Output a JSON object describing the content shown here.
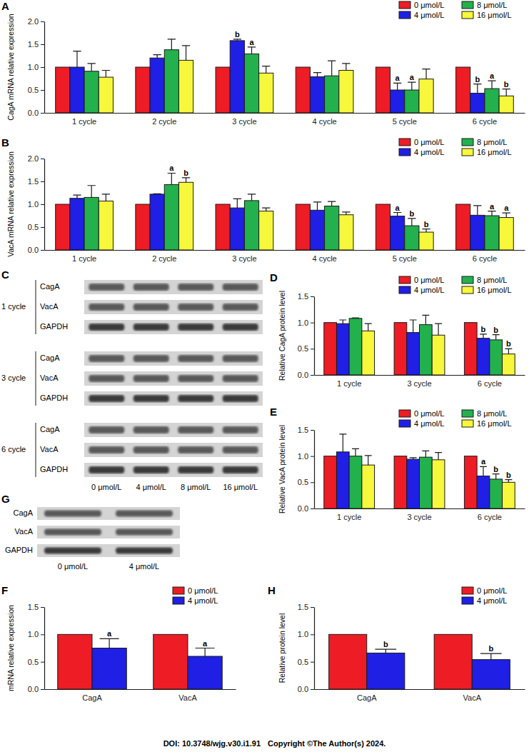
{
  "chart_data": [
    {
      "type": "bar",
      "panel": "A",
      "y_label": "CagA mRNA relative expression",
      "categories": [
        "1 cycle",
        "2 cycle",
        "3 cycle",
        "4 cycle",
        "5 cycle",
        "6 cycle"
      ],
      "series": [
        {
          "name": "0 μmol/L",
          "color": "#ee1c25",
          "values": [
            1,
            1,
            1,
            1,
            1,
            1
          ]
        },
        {
          "name": "4 μmol/L",
          "color": "#1f1fe6",
          "values": [
            1.0,
            1.2,
            1.58,
            0.79,
            0.5,
            0.43
          ],
          "errors": [
            0.35,
            0.07,
            0.03,
            0.09,
            0.15,
            0.2
          ],
          "significance": [
            null,
            null,
            "b",
            null,
            "a",
            "b"
          ]
        },
        {
          "name": "8 μmol/L",
          "color": "#22b14c",
          "values": [
            0.91,
            1.38,
            1.29,
            0.81,
            0.5,
            0.53
          ],
          "errors": [
            0.17,
            0.23,
            0.15,
            0.33,
            0.17,
            0.17
          ],
          "significance": [
            null,
            null,
            "a",
            null,
            "a",
            "a"
          ]
        },
        {
          "name": "16 μmol/L",
          "color": "#f7f73c",
          "values": [
            0.78,
            1.15,
            0.87,
            0.93,
            0.74,
            0.37
          ],
          "errors": [
            0.15,
            0.32,
            0.15,
            0.15,
            0.22,
            0.15
          ],
          "significance": [
            null,
            null,
            null,
            null,
            null,
            "b"
          ]
        }
      ],
      "ylim": [
        0,
        2
      ],
      "yticks": [
        {
          "value": 0,
          "label": "0.0"
        },
        0.5,
        {
          "value": 1,
          "label": "1.0"
        },
        1.5,
        {
          "value": 2,
          "label": "2.0"
        }
      ],
      "legend": "top-right"
    },
    {
      "type": "bar",
      "panel": "B",
      "y_label": "VacA mRNA relative expression",
      "categories": [
        "1 cycle",
        "2 cycle",
        "3 cycle",
        "4 cycle",
        "5 cycle",
        "6 cycle"
      ],
      "series": [
        {
          "name": "0 μmol/L",
          "color": "#ee1c25",
          "values": [
            1,
            1,
            1,
            1,
            1,
            1
          ]
        },
        {
          "name": "4 μmol/L",
          "color": "#1f1fe6",
          "values": [
            1.13,
            1.22,
            0.92,
            0.87,
            0.74,
            0.76
          ],
          "errors": [
            0.07,
            0.01,
            0.2,
            0.18,
            0.08,
            0.21
          ],
          "significance": [
            null,
            null,
            null,
            null,
            "a",
            null
          ]
        },
        {
          "name": "8 μmol/L",
          "color": "#22b14c",
          "values": [
            1.15,
            1.43,
            1.08,
            0.96,
            0.53,
            0.75
          ],
          "errors": [
            0.26,
            0.25,
            0.14,
            0.1,
            0.16,
            0.1
          ],
          "significance": [
            null,
            "a",
            null,
            null,
            "b",
            "a"
          ]
        },
        {
          "name": "16 μmol/L",
          "color": "#f7f73c",
          "values": [
            1.07,
            1.48,
            0.85,
            0.77,
            0.39,
            0.71
          ],
          "errors": [
            0.15,
            0.1,
            0.07,
            0.06,
            0.07,
            0.1
          ],
          "significance": [
            null,
            "b",
            null,
            null,
            "b",
            "a"
          ]
        }
      ],
      "ylim": [
        0,
        2
      ],
      "yticks": [
        {
          "value": 0,
          "label": "0.0"
        },
        0.5,
        {
          "value": 1,
          "label": "1.0"
        },
        1.5,
        {
          "value": 2,
          "label": "2.0"
        }
      ],
      "legend": "top-right"
    },
    {
      "type": "bar",
      "panel": "D",
      "y_label": "Relative CagA protein level",
      "categories": [
        "1 cycle",
        "3 cycle",
        "6 cycle"
      ],
      "series": [
        {
          "name": "0 μmol/L",
          "color": "#ee1c25",
          "values": [
            1,
            1,
            1
          ]
        },
        {
          "name": "4 μmol/L",
          "color": "#1f1fe6",
          "values": [
            0.98,
            0.81,
            0.7
          ],
          "errors": [
            0.07,
            0.24,
            0.08
          ],
          "significance": [
            null,
            null,
            "b"
          ]
        },
        {
          "name": "8 μmol/L",
          "color": "#22b14c",
          "values": [
            1.08,
            0.96,
            0.67
          ],
          "errors": [
            0.01,
            0.18,
            0.1
          ],
          "significance": [
            null,
            null,
            "b"
          ]
        },
        {
          "name": "16 μmol/L",
          "color": "#f7f73c",
          "values": [
            0.84,
            0.76,
            0.4
          ],
          "errors": [
            0.14,
            0.22,
            0.1
          ],
          "significance": [
            null,
            null,
            "b"
          ]
        }
      ],
      "ylim": [
        0,
        1.5
      ],
      "yticks": [
        {
          "value": 0,
          "label": "0.0"
        },
        0.5,
        {
          "value": 1,
          "label": "1.0"
        },
        1.5
      ],
      "legend": "top-right"
    },
    {
      "type": "bar",
      "panel": "E",
      "y_label": "Relative VacA protein level",
      "categories": [
        "1 cycle",
        "3 cycle",
        "6 cycle"
      ],
      "series": [
        {
          "name": "0 μmol/L",
          "color": "#ee1c25",
          "values": [
            1,
            1,
            1
          ]
        },
        {
          "name": "4 μmol/L",
          "color": "#1f1fe6",
          "values": [
            1.08,
            0.94,
            0.62
          ],
          "errors": [
            0.34,
            0.03,
            0.18
          ],
          "significance": [
            null,
            null,
            "a"
          ]
        },
        {
          "name": "8 μmol/L",
          "color": "#22b14c",
          "values": [
            1.0,
            0.98,
            0.56
          ],
          "errors": [
            0.14,
            0.12,
            0.1
          ],
          "significance": [
            null,
            null,
            "b"
          ]
        },
        {
          "name": "16 μmol/L",
          "color": "#f7f73c",
          "values": [
            0.83,
            0.93,
            0.5
          ],
          "errors": [
            0.18,
            0.14,
            0.05
          ],
          "significance": [
            null,
            null,
            "b"
          ]
        }
      ],
      "ylim": [
        0,
        1.5
      ],
      "yticks": [
        {
          "value": 0,
          "label": "0.0"
        },
        0.5,
        {
          "value": 1,
          "label": "1.0"
        },
        1.5
      ],
      "legend": "top-right"
    },
    {
      "type": "bar",
      "panel": "F",
      "y_label": "mRNA relative expression",
      "categories": [
        "CagA",
        "VacA"
      ],
      "series": [
        {
          "name": "0 μmol/L",
          "color": "#ee1c25",
          "values": [
            1,
            1
          ]
        },
        {
          "name": "4 μmol/L",
          "color": "#1f1fe6",
          "values": [
            0.75,
            0.6
          ],
          "errors": [
            0.17,
            0.15
          ],
          "significance": [
            "a",
            "a"
          ]
        }
      ],
      "ylim": [
        0,
        1.5
      ],
      "yticks": [
        {
          "value": 0,
          "label": "0.0"
        },
        0.5,
        {
          "value": 1,
          "label": "1.0"
        },
        1.5
      ],
      "legend": "top-right"
    },
    {
      "type": "bar",
      "panel": "H",
      "y_label": "Relative protein level",
      "categories": [
        "CagA",
        "VacA"
      ],
      "series": [
        {
          "name": "0 μmol/L",
          "color": "#ee1c25",
          "values": [
            1,
            1
          ]
        },
        {
          "name": "4 μmol/L",
          "color": "#1f1fe6",
          "values": [
            0.66,
            0.54
          ],
          "errors": [
            0.07,
            0.11
          ],
          "significance": [
            "b",
            "b"
          ]
        }
      ],
      "ylim": [
        0,
        1.5
      ],
      "yticks": [
        {
          "value": 0,
          "label": "0.0"
        },
        0.5,
        {
          "value": 1,
          "label": "1.0"
        },
        1.5
      ],
      "legend": "top-right"
    }
  ],
  "blots": [
    {
      "panel": "C",
      "groups": [
        {
          "label": "1 cycle",
          "rows": [
            "CagA",
            "VacA",
            "GAPDH"
          ]
        },
        {
          "label": "3 cycle",
          "rows": [
            "CagA",
            "VacA",
            "GAPDH"
          ]
        },
        {
          "label": "6 cycle",
          "rows": [
            "CagA",
            "VacA",
            "GAPDH"
          ]
        }
      ],
      "lanes": [
        "0 μmol/L",
        "4 μmol/L",
        "8 μmol/L",
        "16 μmol/L"
      ]
    },
    {
      "panel": "G",
      "rows": [
        "CagA",
        "VacA",
        "GAPDH"
      ],
      "lanes": [
        "0 μmol/L",
        "4 μmol/L"
      ]
    }
  ],
  "footer": {
    "doi": "DOI: 10.3748/wjg.v30.i1.91",
    "copyright": "Copyright ©The Author(s) 2024."
  }
}
